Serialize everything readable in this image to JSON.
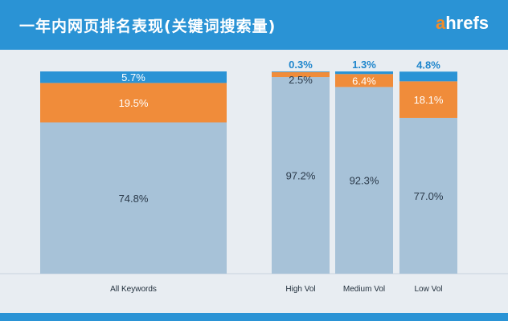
{
  "header": {
    "title": "一年内网页排名表现(关键词搜索量)",
    "logo_first": "a",
    "logo_rest": "hrefs"
  },
  "colors": {
    "header_bg": "#2a93d5",
    "background": "#e8edf2",
    "seg_bottom": "#a7c2d8",
    "seg_middle": "#f08c3a",
    "seg_top": "#2a93d5",
    "label_dark": "#2b3a4a",
    "label_light": "#ffffff",
    "label_blue": "#1f86cc"
  },
  "chart_data": {
    "type": "bar",
    "stacked": true,
    "normalized_percent": true,
    "categories": [
      "All Keywords",
      "High Vol",
      "Medium Vol",
      "Low Vol"
    ],
    "series": [
      {
        "key": "bottom",
        "values": [
          74.8,
          97.2,
          92.3,
          77.0
        ],
        "labels": [
          "74.8%",
          "97.2%",
          "92.3%",
          "77.0%"
        ]
      },
      {
        "key": "middle",
        "values": [
          19.5,
          2.5,
          6.4,
          18.1
        ],
        "labels": [
          "19.5%",
          "2.5%",
          "6.4%",
          "18.1%"
        ]
      },
      {
        "key": "top",
        "values": [
          5.7,
          0.3,
          1.3,
          4.8
        ],
        "labels": [
          "5.7%",
          "0.3%",
          "1.3%",
          "4.8%"
        ]
      }
    ],
    "ylim": [
      0,
      100
    ],
    "grid": false,
    "legend": false
  }
}
